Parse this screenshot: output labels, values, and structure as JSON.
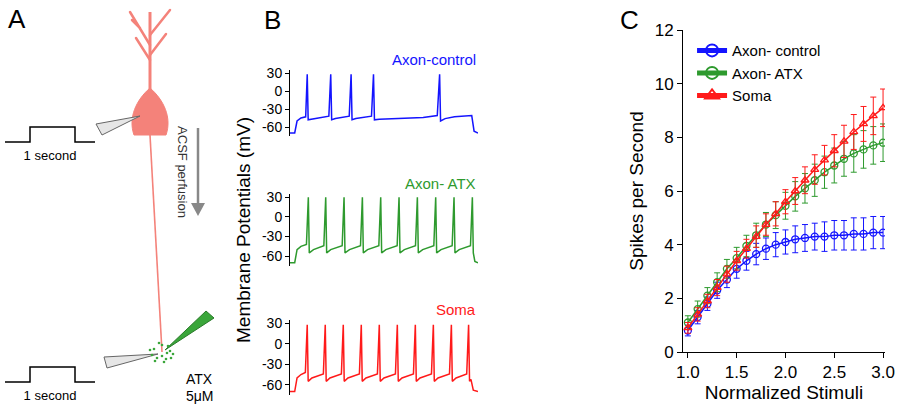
{
  "diagram": {
    "panel": "A",
    "pulse_labels": [
      "1 second",
      "1 second"
    ],
    "perfusion": "ACSF perfusion",
    "drug": "ATX",
    "concentration": "5μM"
  },
  "chart_data": [
    {
      "panel": "B",
      "type": "line",
      "ylabel": "Membrane Potentials (mV)",
      "xlim": [
        0,
        1200
      ],
      "ylim": [
        -75,
        35
      ],
      "yticks": [
        30,
        0,
        -30,
        -60
      ],
      "tick_labels": "y",
      "grid": false,
      "series": [
        {
          "name": "Axon-control",
          "color": "#1414ff",
          "x": [
            0,
            30,
            45,
            70,
            100,
            110,
            116,
            140,
            248,
            260,
            266,
            290,
            378,
            390,
            396,
            420,
            520,
            533,
            539,
            570,
            700,
            850,
            940,
            955,
            961,
            990,
            1050,
            1100,
            1150,
            1160,
            1175,
            1200
          ],
          "values": [
            -70,
            -70,
            -50,
            -45,
            -43,
            28,
            -48,
            -47,
            -42,
            28,
            -48,
            -46,
            -42,
            28,
            -48,
            -46,
            -42,
            28,
            -48,
            -47,
            -46,
            -44,
            -41,
            28,
            -50,
            -46,
            -43,
            -42,
            -40,
            -41,
            -67,
            -70
          ]
        },
        {
          "name": "Axon- ATX",
          "color": "#2e9a2e",
          "x": [
            0,
            30,
            45,
            70,
            105,
            117,
            123,
            150,
            216,
            228,
            234,
            260,
            333,
            345,
            351,
            380,
            450,
            462,
            468,
            495,
            567,
            579,
            585,
            612,
            684,
            696,
            702,
            730,
            801,
            813,
            819,
            847,
            918,
            930,
            936,
            964,
            1035,
            1047,
            1053,
            1080,
            1152,
            1164,
            1170,
            1180,
            1200
          ],
          "values": [
            -70,
            -70,
            -50,
            -45,
            -42,
            30,
            -55,
            -50,
            -44,
            30,
            -55,
            -50,
            -44,
            30,
            -55,
            -50,
            -44,
            30,
            -55,
            -50,
            -44,
            30,
            -55,
            -50,
            -44,
            30,
            -55,
            -50,
            -44,
            30,
            -55,
            -50,
            -44,
            30,
            -55,
            -50,
            -44,
            30,
            -55,
            -50,
            -44,
            30,
            -55,
            -68,
            -70
          ]
        },
        {
          "name": "Soma",
          "color": "#ff1a1a",
          "x": [
            0,
            30,
            45,
            70,
            98,
            110,
            116,
            140,
            213,
            225,
            231,
            255,
            328,
            340,
            346,
            370,
            443,
            455,
            461,
            485,
            558,
            570,
            576,
            600,
            673,
            685,
            691,
            715,
            788,
            800,
            806,
            830,
            903,
            915,
            921,
            945,
            1018,
            1030,
            1036,
            1060,
            1128,
            1140,
            1146,
            1155,
            1170,
            1200
          ],
          "values": [
            -70,
            -70,
            -50,
            -45,
            -42,
            28,
            -55,
            -50,
            -44,
            28,
            -55,
            -50,
            -44,
            28,
            -55,
            -50,
            -44,
            28,
            -55,
            -50,
            -44,
            28,
            -55,
            -50,
            -44,
            28,
            -55,
            -50,
            -44,
            28,
            -55,
            -50,
            -44,
            28,
            -55,
            -50,
            -44,
            28,
            -55,
            -50,
            -44,
            28,
            -55,
            -52,
            -68,
            -70
          ]
        }
      ]
    },
    {
      "panel": "C",
      "type": "scatter",
      "xlabel": "Normalized Stimuli",
      "ylabel": "Spikes per Second",
      "xlim": [
        0.95,
        3.02
      ],
      "ylim": [
        0,
        12
      ],
      "xticks": [
        {
          "value": 1,
          "label": "1.0"
        },
        {
          "value": 1.5,
          "label": "1.5"
        },
        {
          "value": 2,
          "label": "2.0"
        },
        {
          "value": 2.5,
          "label": "2.5"
        },
        {
          "value": 3,
          "label": "3.0"
        }
      ],
      "yticks": [
        0,
        2,
        4,
        6,
        8,
        10,
        12
      ],
      "grid": false,
      "legend": "upper left",
      "x": [
        1.0,
        1.1,
        1.2,
        1.3,
        1.4,
        1.5,
        1.6,
        1.7,
        1.8,
        1.9,
        2.0,
        2.1,
        2.2,
        2.3,
        2.4,
        2.5,
        2.6,
        2.7,
        2.8,
        2.9,
        3.0
      ],
      "series": [
        {
          "name": "Axon- control",
          "color": "#1414ff",
          "marker": "circle-open",
          "line_style": "solid",
          "values": [
            0.8,
            1.3,
            1.8,
            2.3,
            2.7,
            3.1,
            3.4,
            3.65,
            3.85,
            4.0,
            4.1,
            4.2,
            4.25,
            4.3,
            4.3,
            4.35,
            4.35,
            4.4,
            4.4,
            4.45,
            4.45
          ],
          "error": [
            0.2,
            0.25,
            0.25,
            0.3,
            0.3,
            0.35,
            0.35,
            0.4,
            0.4,
            0.45,
            0.45,
            0.5,
            0.5,
            0.5,
            0.55,
            0.55,
            0.55,
            0.6,
            0.6,
            0.6,
            0.6
          ]
        },
        {
          "name": "Axon- ATX",
          "color": "#2e9a2e",
          "marker": "circle-open",
          "line_style": "solid",
          "values": [
            1.1,
            1.6,
            2.1,
            2.6,
            3.1,
            3.5,
            3.95,
            4.35,
            4.75,
            5.1,
            5.45,
            5.8,
            6.1,
            6.4,
            6.7,
            6.95,
            7.2,
            7.4,
            7.55,
            7.7,
            7.8
          ],
          "error": [
            0.25,
            0.3,
            0.3,
            0.35,
            0.35,
            0.4,
            0.4,
            0.45,
            0.45,
            0.5,
            0.5,
            0.55,
            0.55,
            0.6,
            0.6,
            0.65,
            0.65,
            0.7,
            0.7,
            0.7,
            0.7
          ]
        },
        {
          "name": "Soma",
          "color": "#ff1a1a",
          "marker": "triangle-up-open",
          "line_style": "solid",
          "values": [
            0.9,
            1.4,
            1.9,
            2.4,
            2.9,
            3.4,
            3.85,
            4.3,
            4.75,
            5.15,
            5.6,
            6.0,
            6.4,
            6.8,
            7.15,
            7.5,
            7.85,
            8.2,
            8.5,
            8.8,
            9.1
          ],
          "error": [
            0.2,
            0.25,
            0.25,
            0.3,
            0.3,
            0.35,
            0.35,
            0.4,
            0.4,
            0.45,
            0.45,
            0.5,
            0.5,
            0.55,
            0.55,
            0.6,
            0.6,
            0.65,
            0.65,
            0.7,
            0.7
          ]
        }
      ]
    }
  ]
}
